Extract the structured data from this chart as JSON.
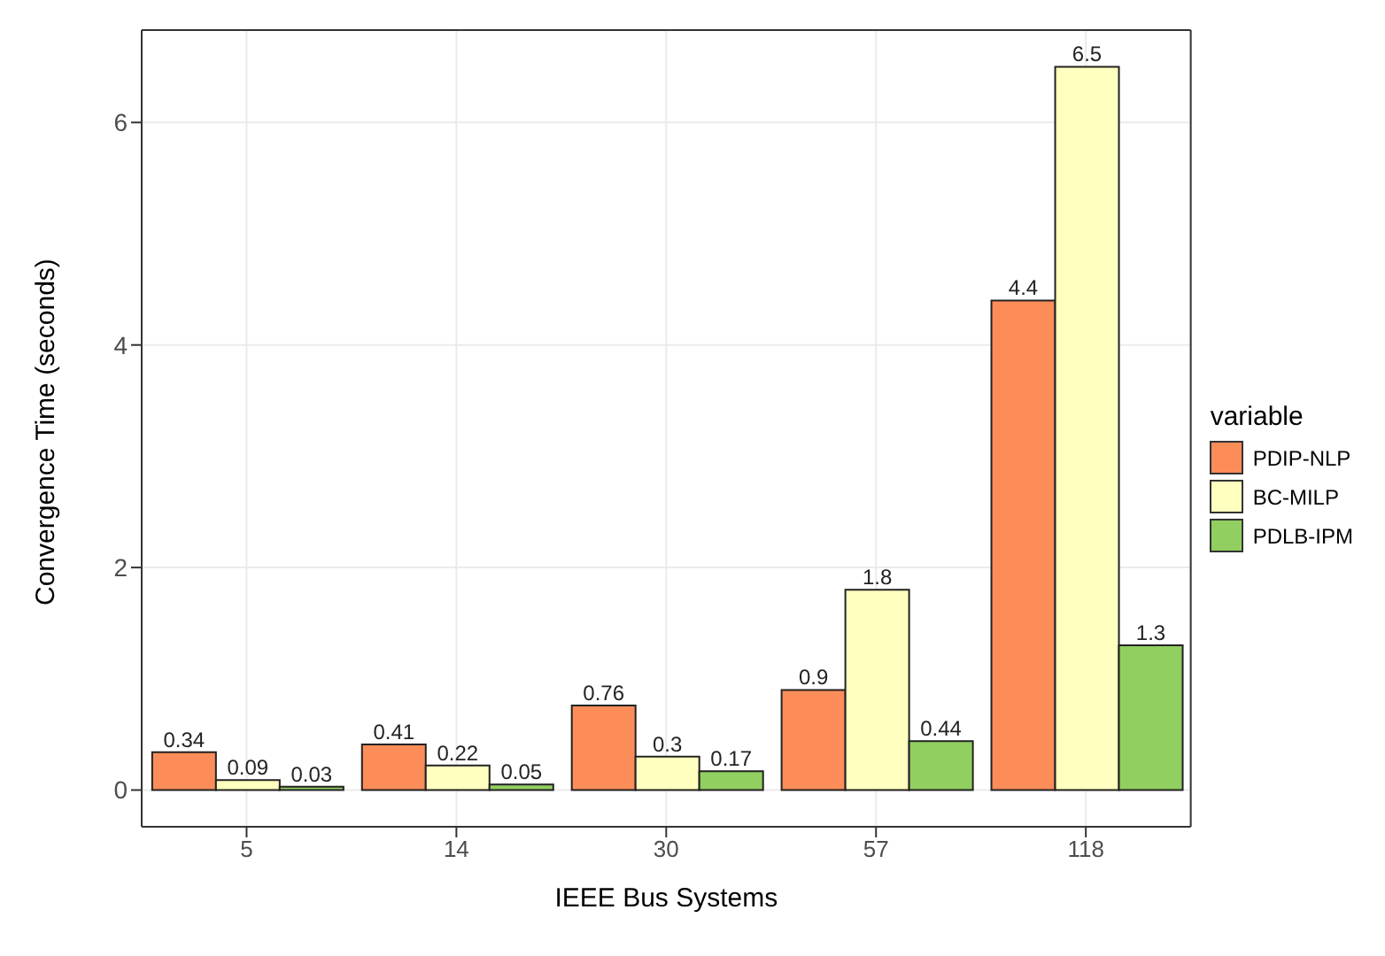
{
  "chart_data": {
    "type": "bar",
    "xlabel": "IEEE Bus Systems",
    "ylabel": "Convergence Time (seconds)",
    "legend_title": "variable",
    "categories": [
      "5",
      "14",
      "30",
      "57",
      "118"
    ],
    "series": [
      {
        "name": "PDIP-NLP",
        "color": "#fc8d59",
        "values": [
          0.34,
          0.41,
          0.76,
          0.9,
          4.4
        ]
      },
      {
        "name": "BC-MILP",
        "color": "#ffffbf",
        "values": [
          0.09,
          0.22,
          0.3,
          1.8,
          6.5
        ]
      },
      {
        "name": "PDLB-IPM",
        "color": "#91cf60",
        "values": [
          0.03,
          0.05,
          0.17,
          0.44,
          1.3
        ]
      }
    ],
    "ylim": [
      -0.33,
      6.83
    ],
    "yticks": [
      0,
      2,
      4,
      6
    ],
    "grid": true,
    "legend": "right",
    "data_labels": true
  }
}
